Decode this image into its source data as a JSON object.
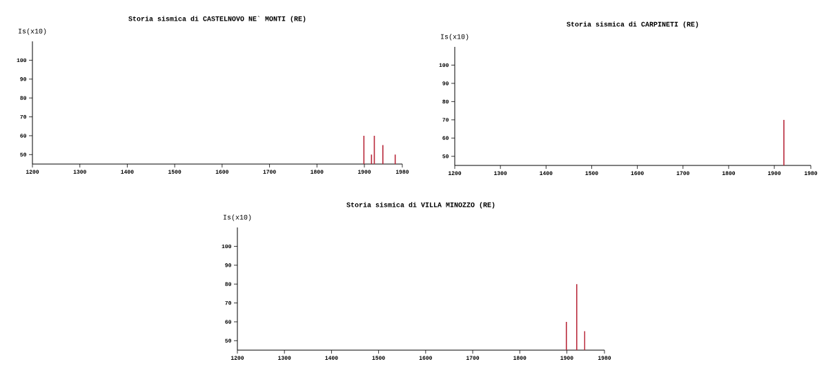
{
  "chart_data": [
    {
      "type": "bar",
      "title": "Storia sismica di  CASTELNOVO NE` MONTI (RE)",
      "ylabel": "Is(x10)",
      "color": "#b8283a",
      "x": [
        1899,
        1915,
        1921,
        1939,
        1965
      ],
      "values": [
        60,
        50,
        60,
        55,
        50
      ],
      "xlim": [
        1200,
        1980
      ],
      "xticks": [
        1200,
        1300,
        1400,
        1500,
        1600,
        1700,
        1800,
        1900,
        1980
      ],
      "ylim": [
        45,
        110
      ],
      "yticks": [
        50,
        60,
        70,
        80,
        90,
        100
      ]
    },
    {
      "type": "bar",
      "title": "Storia sismica di  CARPINETI (RE)",
      "ylabel": "Is(x10)",
      "color": "#b8283a",
      "x": [
        1921
      ],
      "values": [
        70
      ],
      "xlim": [
        1200,
        1980
      ],
      "xticks": [
        1200,
        1300,
        1400,
        1500,
        1600,
        1700,
        1800,
        1900,
        1980
      ],
      "ylim": [
        45,
        110
      ],
      "yticks": [
        50,
        60,
        70,
        80,
        90,
        100
      ]
    },
    {
      "type": "bar",
      "title": "Storia sismica di  VILLA MINOZZO (RE)",
      "ylabel": "Is(x10)",
      "color": "#b8283a",
      "x": [
        1899,
        1921,
        1938
      ],
      "values": [
        60,
        80,
        55
      ],
      "xlim": [
        1200,
        1980
      ],
      "xticks": [
        1200,
        1300,
        1400,
        1500,
        1600,
        1700,
        1800,
        1900,
        1980
      ],
      "ylim": [
        45,
        110
      ],
      "yticks": [
        50,
        60,
        70,
        80,
        90,
        100
      ]
    }
  ]
}
